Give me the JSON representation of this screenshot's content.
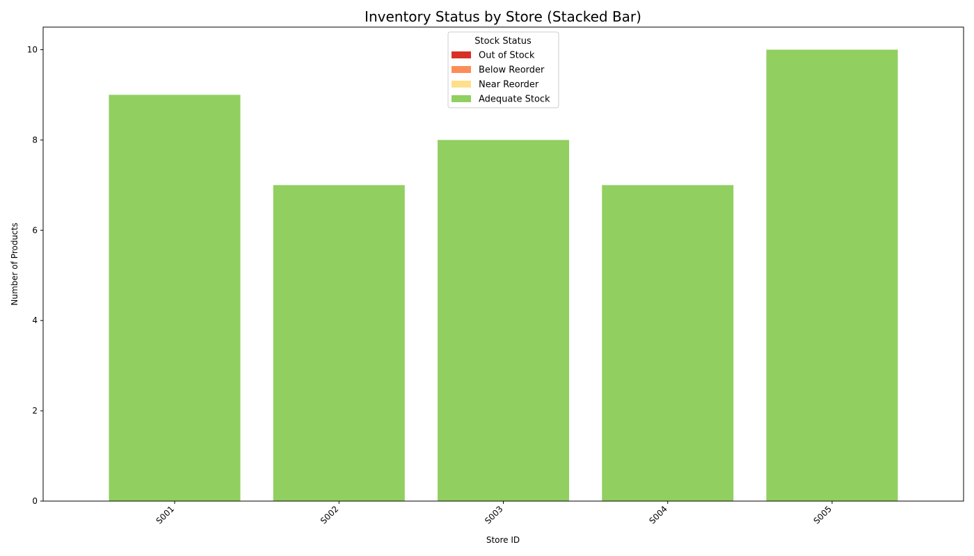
{
  "chart_data": {
    "type": "bar",
    "stacked": true,
    "title": "Inventory Status by Store (Stacked Bar)",
    "xlabel": "Store ID",
    "ylabel": "Number of Products",
    "categories": [
      "S001",
      "S002",
      "S003",
      "S004",
      "S005"
    ],
    "series": [
      {
        "name": "Out of Stock",
        "color": "#d73027",
        "values": [
          0,
          0,
          0,
          0,
          0
        ]
      },
      {
        "name": "Below Reorder",
        "color": "#fc8d59",
        "values": [
          0,
          0,
          0,
          0,
          0
        ]
      },
      {
        "name": "Near Reorder",
        "color": "#fee08b",
        "values": [
          0,
          0,
          0,
          0,
          0
        ]
      },
      {
        "name": "Adequate Stock",
        "color": "#91cf60",
        "values": [
          9,
          7,
          8,
          7,
          10
        ]
      }
    ],
    "ylim": [
      0,
      10.5
    ],
    "yticks": [
      0,
      2,
      4,
      6,
      8,
      10
    ],
    "grid": false,
    "legend": {
      "title": "Stock Status",
      "position": "top-center"
    }
  }
}
